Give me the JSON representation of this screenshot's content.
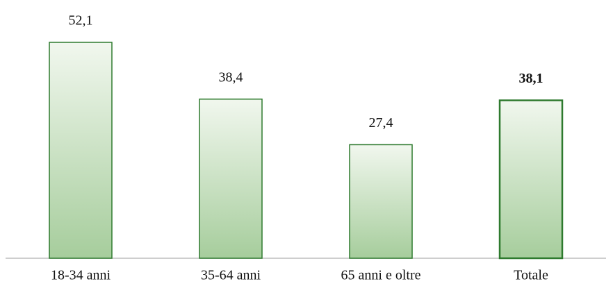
{
  "chart_data": {
    "type": "bar",
    "categories": [
      "18-34 anni",
      "35-64 anni",
      "65 anni e oltre",
      "Totale"
    ],
    "values": [
      52.1,
      38.4,
      27.4,
      38.1
    ],
    "value_labels": [
      "52,1",
      "38,4",
      "27,4",
      "38,1"
    ],
    "color": "#a6cd9c"
  }
}
